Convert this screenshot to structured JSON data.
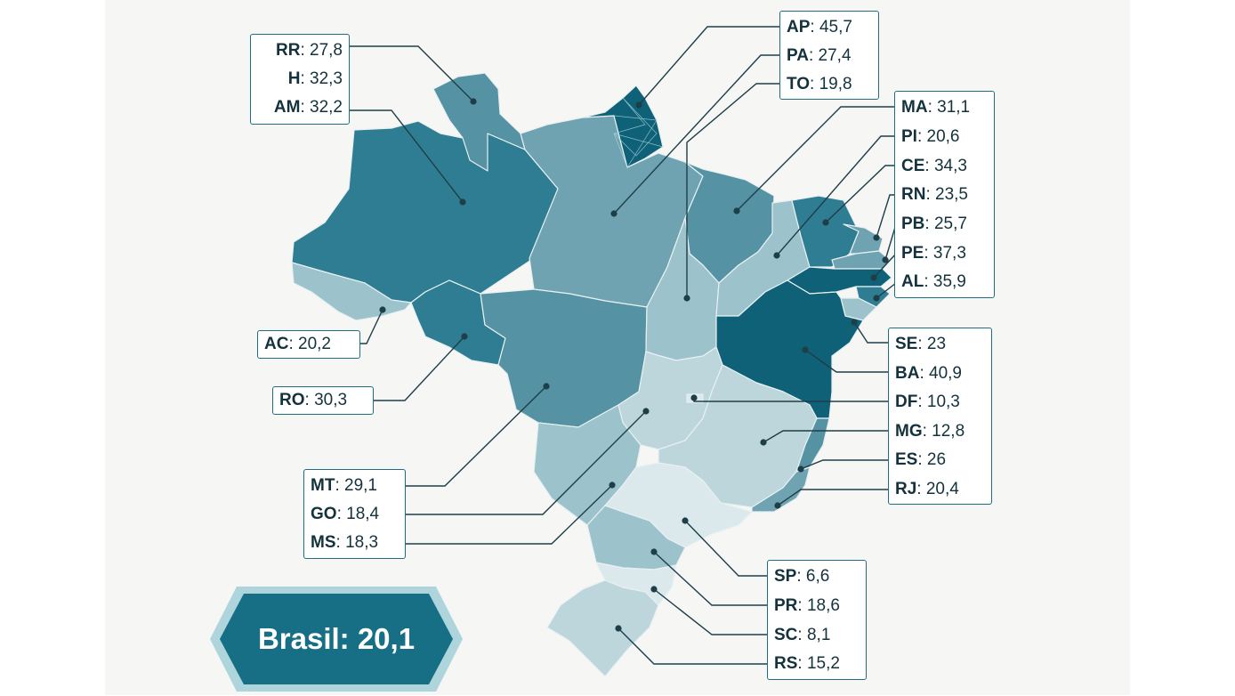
{
  "colors": {
    "darkest": "#0f6178",
    "dark": "#2e7d92",
    "medium": "#5593a4",
    "mediumlight": "#6fa3b1",
    "light": "#9cc3cc",
    "lighter": "#bcd6dc",
    "lightest": "#dbe9ec",
    "border": "#1d6f80"
  },
  "states": {
    "RR": {
      "code": "RR",
      "value": "27,8",
      "shade": "medium"
    },
    "H": {
      "code": "H",
      "value": "32,3"
    },
    "AM": {
      "code": "AM",
      "value": "32,2",
      "shade": "dark"
    },
    "AP": {
      "code": "AP",
      "value": "45,7",
      "shade": "darkest"
    },
    "PA": {
      "code": "PA",
      "value": "27,4",
      "shade": "mediumlight"
    },
    "TO": {
      "code": "TO",
      "value": "19,8",
      "shade": "light"
    },
    "MA": {
      "code": "MA",
      "value": "31,1",
      "shade": "medium"
    },
    "PI": {
      "code": "PI",
      "value": "20,6",
      "shade": "light"
    },
    "CE": {
      "code": "CE",
      "value": "34,3",
      "shade": "dark"
    },
    "RN": {
      "code": "RN",
      "value": "23,5",
      "shade": "mediumlight"
    },
    "PB": {
      "code": "PB",
      "value": "25,7",
      "shade": "mediumlight"
    },
    "PE": {
      "code": "PE",
      "value": "37,3",
      "shade": "darkest"
    },
    "AL": {
      "code": "AL",
      "value": "35,9",
      "shade": "dark"
    },
    "SE": {
      "code": "SE",
      "value": "23",
      "shade": "light"
    },
    "BA": {
      "code": "BA",
      "value": "40,9",
      "shade": "darkest"
    },
    "DF": {
      "code": "DF",
      "value": "10,3",
      "shade": "lightest"
    },
    "MG": {
      "code": "MG",
      "value": "12,8",
      "shade": "lighter"
    },
    "ES": {
      "code": "ES",
      "value": "26",
      "shade": "medium"
    },
    "RJ": {
      "code": "RJ",
      "value": "20,4",
      "shade": "mediumlight"
    },
    "AC": {
      "code": "AC",
      "value": "20,2",
      "shade": "light"
    },
    "RO": {
      "code": "RO",
      "value": "30,3",
      "shade": "dark"
    },
    "MT": {
      "code": "MT",
      "value": "29,1",
      "shade": "medium"
    },
    "GO": {
      "code": "GO",
      "value": "18,4",
      "shade": "lighter"
    },
    "MS": {
      "code": "MS",
      "value": "18,3",
      "shade": "light"
    },
    "SP": {
      "code": "SP",
      "value": "6,6",
      "shade": "lightest"
    },
    "PR": {
      "code": "PR",
      "value": "18,6",
      "shade": "light"
    },
    "SC": {
      "code": "SC",
      "value": "8,1",
      "shade": "lightest"
    },
    "RS": {
      "code": "RS",
      "value": "15,2",
      "shade": "lighter"
    }
  },
  "brasil": {
    "label": "Brasil:",
    "value": "20,1"
  }
}
